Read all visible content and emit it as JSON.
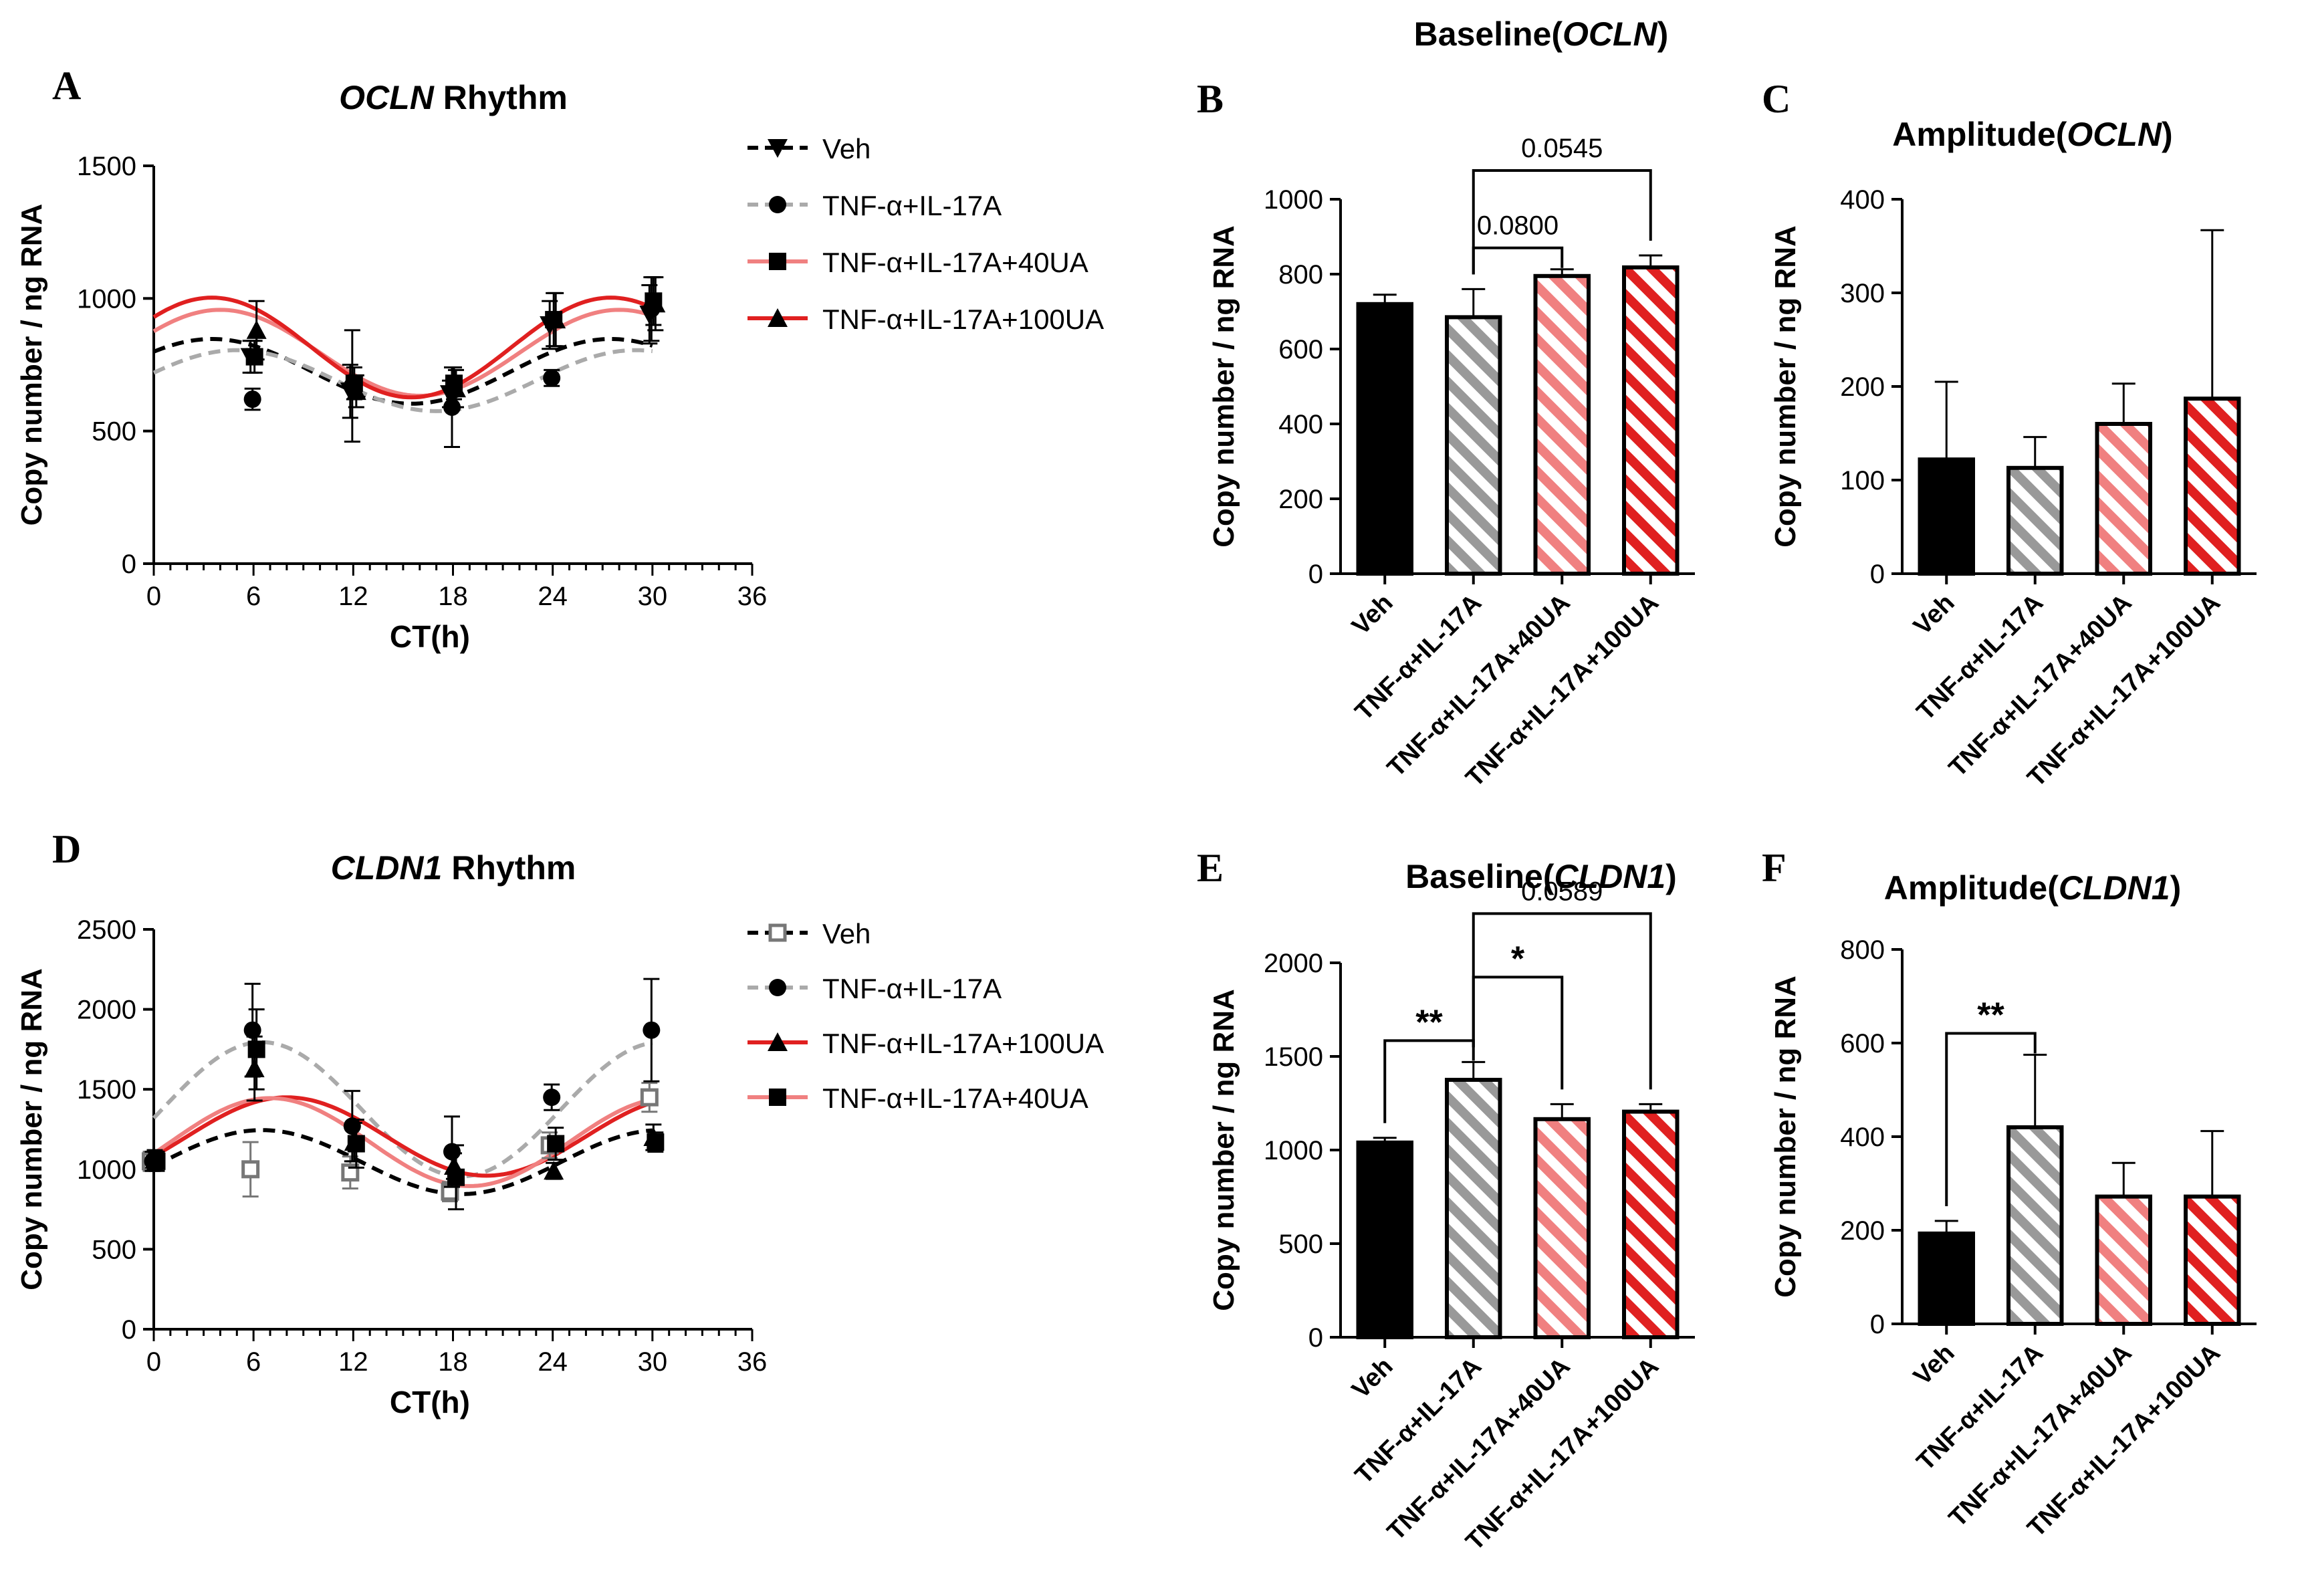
{
  "chart_data": [
    {
      "panel": "A",
      "type": "line",
      "title_italic": "OCLN",
      "title_rest": " Rhythm",
      "xlabel": "CT(h)",
      "ylabel": "Copy number / ng RNA",
      "xlim": [
        0,
        36
      ],
      "ylim": [
        0,
        1500
      ],
      "xticks": [
        0,
        6,
        12,
        18,
        24,
        30,
        36
      ],
      "yticks": [
        0,
        500,
        1000,
        1500
      ],
      "series": [
        {
          "name": "Veh",
          "color": "#000000",
          "marker": "tri-down",
          "dashed": true,
          "x": [
            6,
            12,
            18,
            24,
            30
          ],
          "y": [
            780,
            650,
            640,
            900,
            940
          ],
          "err": [
            60,
            100,
            50,
            90,
            110
          ],
          "fit": {
            "mesor": 725,
            "amp": 122,
            "peak": 3.5
          }
        },
        {
          "name": "TNF-α+IL-17A",
          "color": "#000000",
          "line_color": "#aaaaaa",
          "marker": "circle",
          "dashed": true,
          "x": [
            6,
            12,
            18,
            24,
            30
          ],
          "y": [
            620,
            670,
            590,
            700,
            960
          ],
          "err": [
            40,
            210,
            150,
            30,
            120
          ],
          "fit": {
            "mesor": 690,
            "amp": 115,
            "peak": 5
          }
        },
        {
          "name": "TNF-α+IL-17A+40UA",
          "color": "#000000",
          "line_color": "#f08080",
          "marker": "square",
          "dashed": false,
          "x": [
            6,
            12,
            18,
            24,
            30
          ],
          "y": [
            780,
            680,
            680,
            920,
            990
          ],
          "err": [
            60,
            60,
            60,
            100,
            90
          ],
          "fit": {
            "mesor": 795,
            "amp": 162,
            "peak": 4
          }
        },
        {
          "name": "TNF-α+IL-17A+100UA",
          "color": "#000000",
          "line_color": "#e02020",
          "marker": "triangle",
          "dashed": false,
          "x": [
            6,
            12,
            18,
            24,
            30
          ],
          "y": [
            880,
            650,
            660,
            920,
            980
          ],
          "err": [
            110,
            60,
            70,
            100,
            100
          ],
          "fit": {
            "mesor": 815,
            "amp": 188,
            "peak": 3.5
          }
        }
      ]
    },
    {
      "panel": "B",
      "type": "bar",
      "title_plain": "Baseline(",
      "title_italic": "OCLN",
      "title_close": ")",
      "ylabel": "Copy number / ng RNA",
      "ylim": [
        0,
        1000
      ],
      "yticks": [
        0,
        200,
        400,
        600,
        800,
        1000
      ],
      "categories": [
        "Veh",
        "TNF-α+IL-17A",
        "TNF-α+IL-17A+40UA",
        "TNF-α+IL-17A+100UA"
      ],
      "values": [
        720,
        685,
        795,
        818
      ],
      "errors": [
        25,
        75,
        18,
        32
      ],
      "colors": [
        "#000000",
        "#999999",
        "#f08080",
        "#e02020"
      ],
      "brackets": [
        {
          "from": 1,
          "to": 2,
          "label": "0.0800"
        },
        {
          "from": 1,
          "to": 3,
          "label": "0.0545"
        }
      ]
    },
    {
      "panel": "C",
      "type": "bar",
      "title_plain": "Amplitude(",
      "title_italic": "OCLN",
      "title_close": ")",
      "ylabel": "Copy number / ng RNA",
      "ylim": [
        0,
        400
      ],
      "yticks": [
        0,
        100,
        200,
        300,
        400
      ],
      "categories": [
        "Veh",
        "TNF-α+IL-17A",
        "TNF-α+IL-17A+40UA",
        "TNF-α+IL-17A+100UA"
      ],
      "values": [
        122,
        113,
        160,
        187
      ],
      "errors": [
        83,
        33,
        43,
        180
      ],
      "colors": [
        "#000000",
        "#999999",
        "#f08080",
        "#e02020"
      ],
      "brackets": []
    },
    {
      "panel": "D",
      "type": "line",
      "title_italic": "CLDN1",
      "title_rest": " Rhythm",
      "xlabel": "CT(h)",
      "ylabel": "Copy number / ng RNA",
      "xlim": [
        0,
        36
      ],
      "ylim": [
        0,
        2500
      ],
      "xticks": [
        0,
        6,
        12,
        18,
        24,
        30,
        36
      ],
      "yticks": [
        0,
        500,
        1000,
        1500,
        2000,
        2500
      ],
      "series": [
        {
          "name": "Veh",
          "color": "#777777",
          "line_color": "#000000",
          "marker": "open-square",
          "dashed": true,
          "x": [
            0,
            6,
            12,
            18,
            24,
            30
          ],
          "y": [
            1050,
            1000,
            980,
            860,
            1150,
            1450
          ],
          "err": [
            60,
            170,
            100,
            60,
            80,
            90
          ],
          "fit": {
            "mesor": 1045,
            "amp": 200,
            "peak": 6.5
          }
        },
        {
          "name": "TNF-α+IL-17A",
          "color": "#000000",
          "line_color": "#aaaaaa",
          "marker": "circle",
          "dashed": true,
          "x": [
            0,
            6,
            12,
            18,
            24,
            30
          ],
          "y": [
            1050,
            1870,
            1270,
            1110,
            1450,
            1870
          ],
          "err": [
            60,
            290,
            220,
            220,
            80,
            320
          ],
          "fit": {
            "mesor": 1375,
            "amp": 420,
            "peak": 6.5
          }
        },
        {
          "name": "TNF-α+IL-17A+100UA",
          "color": "#000000",
          "line_color": "#e02020",
          "marker": "triangle",
          "dashed": false,
          "x": [
            0,
            6,
            12,
            18,
            24,
            30
          ],
          "y": [
            1060,
            1630,
            1170,
            1020,
            990,
            1200
          ],
          "err": [
            60,
            200,
            120,
            80,
            50,
            80
          ],
          "fit": {
            "mesor": 1205,
            "amp": 245,
            "peak": 8
          }
        },
        {
          "name": "TNF-α+IL-17A+40UA",
          "color": "#000000",
          "line_color": "#f08080",
          "marker": "square",
          "dashed": false,
          "x": [
            0,
            6,
            12,
            18,
            24,
            30
          ],
          "y": [
            1050,
            1750,
            1160,
            950,
            1160,
            1170
          ],
          "err": [
            60,
            250,
            150,
            200,
            100,
            60
          ],
          "fit": {
            "mesor": 1170,
            "amp": 275,
            "peak": 7
          }
        }
      ]
    },
    {
      "panel": "E",
      "type": "bar",
      "title_plain": "Baseline(",
      "title_italic": "CLDN1",
      "title_close": ")",
      "ylabel": "Copy number / ng RNA",
      "ylim": [
        0,
        2000
      ],
      "yticks": [
        0,
        500,
        1000,
        1500,
        2000
      ],
      "categories": [
        "Veh",
        "TNF-α+IL-17A",
        "TNF-α+IL-17A+40UA",
        "TNF-α+IL-17A+100UA"
      ],
      "values": [
        1040,
        1375,
        1165,
        1205
      ],
      "errors": [
        25,
        95,
        80,
        40
      ],
      "colors": [
        "#000000",
        "#999999",
        "#f08080",
        "#e02020"
      ],
      "brackets": [
        {
          "from": 0,
          "to": 1,
          "label": "**"
        },
        {
          "from": 1,
          "to": 2,
          "label": "*"
        },
        {
          "from": 1,
          "to": 3,
          "label": "0.0589"
        }
      ]
    },
    {
      "panel": "F",
      "type": "bar",
      "title_plain": "Amplitude(",
      "title_italic": "CLDN1",
      "title_close": ")",
      "ylabel": "Copy number / ng RNA",
      "ylim": [
        0,
        800
      ],
      "yticks": [
        0,
        200,
        400,
        600,
        800
      ],
      "categories": [
        "Veh",
        "TNF-α+IL-17A",
        "TNF-α+IL-17A+40UA",
        "TNF-α+IL-17A+100UA"
      ],
      "values": [
        193,
        420,
        272,
        272
      ],
      "errors": [
        27,
        155,
        72,
        140
      ],
      "colors": [
        "#000000",
        "#999999",
        "#f08080",
        "#e02020"
      ],
      "brackets": [
        {
          "from": 0,
          "to": 1,
          "label": "**"
        }
      ]
    }
  ]
}
